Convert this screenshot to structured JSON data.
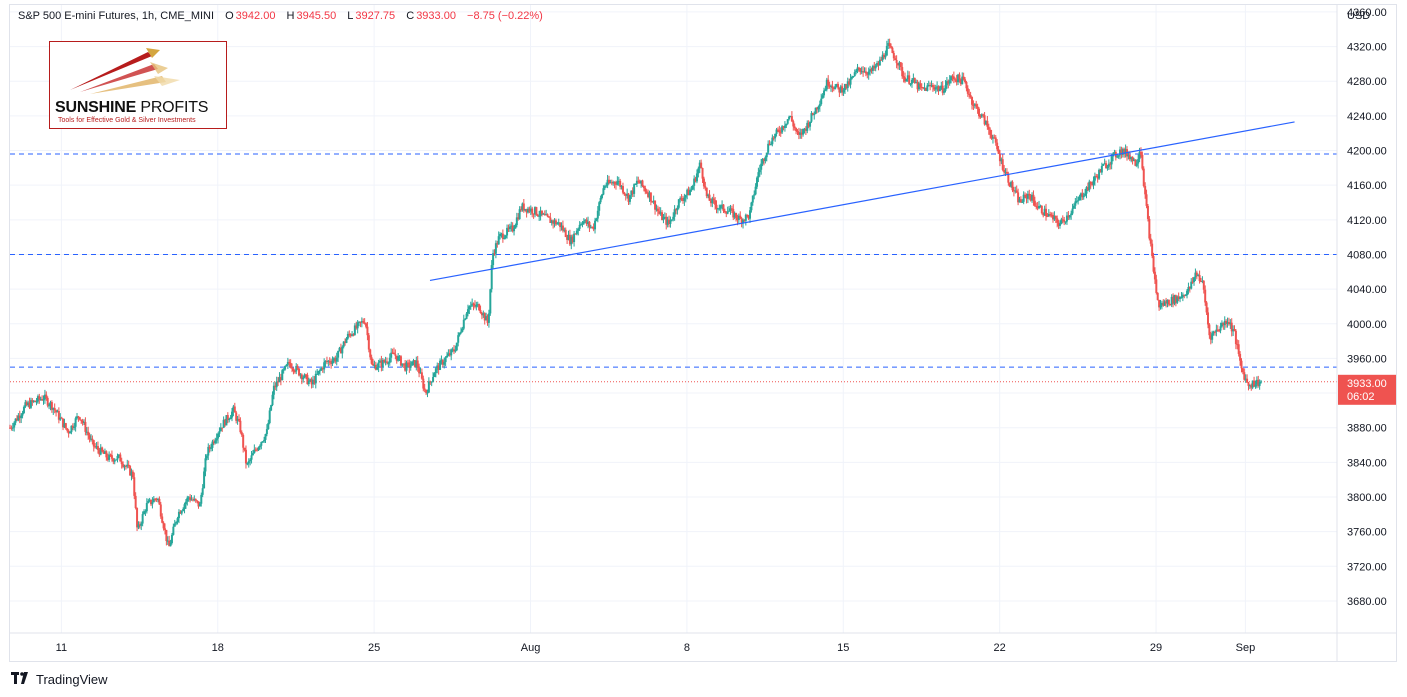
{
  "header": {
    "symbol": "S&P 500 E-mini Futures, 1h, CME_MINI",
    "o_label": "O",
    "o_value": "3942.00",
    "h_label": "H",
    "h_value": "3945.50",
    "l_label": "L",
    "l_value": "3927.75",
    "c_label": "C",
    "c_value": "3933.00",
    "change": "−8.75 (−0.22%)"
  },
  "logo": {
    "brand_bold": "SUNSHINE",
    "brand_thin": "PROFITS",
    "tagline": "Tools for Effective Gold & Silver Investments"
  },
  "footer": {
    "brand": "TradingView",
    "icon": "tradingview-logo-icon"
  },
  "chart_data": {
    "type": "candlestick",
    "currency_label": "USD",
    "ylim": [
      3643,
      4368
    ],
    "y_ticks": [
      4360,
      4320,
      4280,
      4240,
      4200,
      4160,
      4120,
      4080,
      4040,
      4000,
      3960,
      3920,
      3880,
      3840,
      3800,
      3760,
      3720,
      3680
    ],
    "x_ticks": [
      {
        "label": "11",
        "day": 11
      },
      {
        "label": "18",
        "day": 18
      },
      {
        "label": "25",
        "day": 25
      },
      {
        "label": "Aug",
        "day": 32
      },
      {
        "label": "8",
        "day": 39
      },
      {
        "label": "15",
        "day": 46
      },
      {
        "label": "22",
        "day": 53
      },
      {
        "label": "29",
        "day": 60
      },
      {
        "label": "Sep",
        "day": 64
      }
    ],
    "x_range_days": [
      8.7,
      68.1
    ],
    "price_path": [
      [
        8.7,
        3880
      ],
      [
        9.4,
        3905
      ],
      [
        10.2,
        3915
      ],
      [
        10.6,
        3905
      ],
      [
        11.3,
        3875
      ],
      [
        11.8,
        3895
      ],
      [
        12.4,
        3860
      ],
      [
        13.1,
        3845
      ],
      [
        13.6,
        3845
      ],
      [
        14.2,
        3825
      ],
      [
        14.4,
        3760
      ],
      [
        14.8,
        3790
      ],
      [
        15.3,
        3800
      ],
      [
        15.6,
        3765
      ],
      [
        15.8,
        3740
      ],
      [
        16.2,
        3780
      ],
      [
        16.7,
        3800
      ],
      [
        17.2,
        3790
      ],
      [
        17.5,
        3850
      ],
      [
        18.1,
        3880
      ],
      [
        18.7,
        3900
      ],
      [
        19.0,
        3880
      ],
      [
        19.3,
        3835
      ],
      [
        19.7,
        3855
      ],
      [
        20.2,
        3875
      ],
      [
        20.5,
        3925
      ],
      [
        21.2,
        3955
      ],
      [
        21.8,
        3940
      ],
      [
        22.2,
        3930
      ],
      [
        22.8,
        3955
      ],
      [
        23.3,
        3960
      ],
      [
        23.8,
        3985
      ],
      [
        24.2,
        3995
      ],
      [
        24.6,
        4005
      ],
      [
        24.9,
        3950
      ],
      [
        25.4,
        3955
      ],
      [
        25.9,
        3965
      ],
      [
        26.4,
        3950
      ],
      [
        26.9,
        3955
      ],
      [
        27.3,
        3920
      ],
      [
        27.7,
        3945
      ],
      [
        28.2,
        3960
      ],
      [
        28.6,
        3970
      ],
      [
        29.2,
        4020
      ],
      [
        29.7,
        4020
      ],
      [
        30.1,
        4000
      ],
      [
        30.3,
        4080
      ],
      [
        30.6,
        4100
      ],
      [
        31.2,
        4110
      ],
      [
        31.6,
        4135
      ],
      [
        32.2,
        4130
      ],
      [
        32.8,
        4120
      ],
      [
        33.3,
        4115
      ],
      [
        33.8,
        4095
      ],
      [
        34.3,
        4120
      ],
      [
        34.8,
        4110
      ],
      [
        35.3,
        4160
      ],
      [
        35.9,
        4165
      ],
      [
        36.4,
        4145
      ],
      [
        36.8,
        4165
      ],
      [
        37.3,
        4150
      ],
      [
        37.8,
        4125
      ],
      [
        38.2,
        4115
      ],
      [
        38.6,
        4140
      ],
      [
        39.2,
        4155
      ],
      [
        39.6,
        4185
      ],
      [
        39.9,
        4145
      ],
      [
        40.4,
        4135
      ],
      [
        40.9,
        4130
      ],
      [
        41.4,
        4120
      ],
      [
        41.8,
        4125
      ],
      [
        42.2,
        4175
      ],
      [
        42.7,
        4210
      ],
      [
        43.2,
        4225
      ],
      [
        43.6,
        4240
      ],
      [
        44.0,
        4215
      ],
      [
        44.4,
        4230
      ],
      [
        44.9,
        4255
      ],
      [
        45.3,
        4280
      ],
      [
        45.8,
        4270
      ],
      [
        46.2,
        4275
      ],
      [
        46.7,
        4295
      ],
      [
        47.2,
        4290
      ],
      [
        47.6,
        4300
      ],
      [
        48.0,
        4320
      ],
      [
        48.4,
        4305
      ],
      [
        48.7,
        4285
      ],
      [
        49.1,
        4280
      ],
      [
        49.5,
        4270
      ],
      [
        50.0,
        4275
      ],
      [
        50.4,
        4270
      ],
      [
        50.9,
        4285
      ],
      [
        51.4,
        4280
      ],
      [
        51.8,
        4255
      ],
      [
        52.3,
        4235
      ],
      [
        52.7,
        4215
      ],
      [
        53.1,
        4185
      ],
      [
        53.5,
        4160
      ],
      [
        53.9,
        4140
      ],
      [
        54.3,
        4150
      ],
      [
        54.7,
        4135
      ],
      [
        55.2,
        4125
      ],
      [
        55.7,
        4115
      ],
      [
        56.2,
        4130
      ],
      [
        56.7,
        4150
      ],
      [
        57.2,
        4165
      ],
      [
        57.6,
        4180
      ],
      [
        58.0,
        4190
      ],
      [
        58.4,
        4200
      ],
      [
        58.8,
        4195
      ],
      [
        59.1,
        4185
      ],
      [
        59.3,
        4205
      ],
      [
        59.5,
        4150
      ],
      [
        59.8,
        4080
      ],
      [
        60.1,
        4020
      ],
      [
        60.5,
        4025
      ],
      [
        61.0,
        4030
      ],
      [
        61.5,
        4040
      ],
      [
        61.8,
        4060
      ],
      [
        62.1,
        4045
      ],
      [
        62.4,
        3985
      ],
      [
        62.8,
        3995
      ],
      [
        63.2,
        4005
      ],
      [
        63.5,
        3990
      ],
      [
        63.8,
        3950
      ],
      [
        64.1,
        3930
      ],
      [
        64.5,
        3932
      ],
      [
        64.7,
        3933
      ]
    ],
    "trendline": {
      "from": [
        27.5,
        4050
      ],
      "to": [
        66.2,
        4233
      ]
    },
    "horizontal_levels": [
      4196,
      4080,
      3950
    ],
    "last_price_line": 3933,
    "last_price_label": "3933.00",
    "countdown_label": "06:02",
    "colors": {
      "up": "#26a69a",
      "down": "#ef5350",
      "level": "#2962ff",
      "trend": "#2962ff",
      "last_price": "#ef5350",
      "grid": "#f0f3fa"
    }
  }
}
